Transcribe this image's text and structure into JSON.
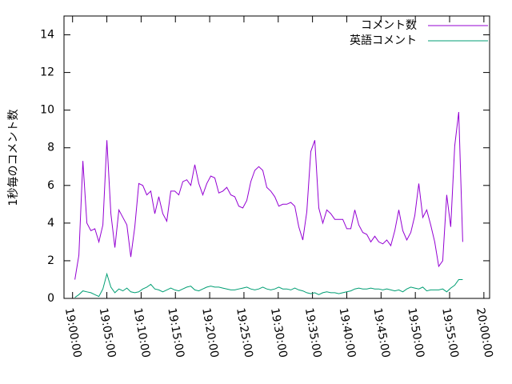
{
  "chart_data": {
    "type": "line",
    "ylabel": "1秒毎のコメント数",
    "legend": "top-right",
    "xlim": [
      "18:58:45",
      "20:00:50"
    ],
    "xticks": [
      "19:00:00",
      "19:05:00",
      "19:10:00",
      "19:15:00",
      "19:20:00",
      "19:25:00",
      "19:30:00",
      "19:35:00",
      "19:40:00",
      "19:45:00",
      "19:50:00",
      "19:55:00",
      "20:00:00"
    ],
    "ylim": [
      0,
      15
    ],
    "yticks": [
      0,
      2,
      4,
      6,
      8,
      10,
      12,
      14
    ],
    "x": [
      "19:00:20",
      "19:00:55",
      "19:01:30",
      "19:02:05",
      "19:02:40",
      "19:03:15",
      "19:03:50",
      "19:04:25",
      "19:05:00",
      "19:05:35",
      "19:06:10",
      "19:06:45",
      "19:07:20",
      "19:07:55",
      "19:08:30",
      "19:09:05",
      "19:09:40",
      "19:10:15",
      "19:10:50",
      "19:11:25",
      "19:12:00",
      "19:12:35",
      "19:13:10",
      "19:13:45",
      "19:14:20",
      "19:14:55",
      "19:15:30",
      "19:16:05",
      "19:16:40",
      "19:17:15",
      "19:17:50",
      "19:18:25",
      "19:19:00",
      "19:19:35",
      "19:20:10",
      "19:20:45",
      "19:21:20",
      "19:21:55",
      "19:22:30",
      "19:23:05",
      "19:23:40",
      "19:24:15",
      "19:24:50",
      "19:25:25",
      "19:26:00",
      "19:26:35",
      "19:27:10",
      "19:27:45",
      "19:28:20",
      "19:28:55",
      "19:29:30",
      "19:30:05",
      "19:30:40",
      "19:31:15",
      "19:31:50",
      "19:32:25",
      "19:33:00",
      "19:33:35",
      "19:34:10",
      "19:34:45",
      "19:35:20",
      "19:35:55",
      "19:36:30",
      "19:37:05",
      "19:37:40",
      "19:38:15",
      "19:38:50",
      "19:39:25",
      "19:40:00",
      "19:40:35",
      "19:41:10",
      "19:41:45",
      "19:42:20",
      "19:42:55",
      "19:43:30",
      "19:44:05",
      "19:44:40",
      "19:45:15",
      "19:45:50",
      "19:46:25",
      "19:47:00",
      "19:47:35",
      "19:48:10",
      "19:48:45",
      "19:49:20",
      "19:49:55",
      "19:50:30",
      "19:51:05",
      "19:51:40",
      "19:52:15",
      "19:52:50",
      "19:53:25",
      "19:54:00",
      "19:54:35",
      "19:55:10",
      "19:55:45",
      "19:56:20",
      "19:56:55"
    ],
    "series": [
      {
        "name": "コメント数",
        "color": "#9400d3",
        "values": [
          1.0,
          2.3,
          7.3,
          4.0,
          3.6,
          3.7,
          3.0,
          3.9,
          8.4,
          4.5,
          2.7,
          4.7,
          4.3,
          3.9,
          2.2,
          3.8,
          6.1,
          6.0,
          5.5,
          5.7,
          4.5,
          5.4,
          4.5,
          4.1,
          5.7,
          5.7,
          5.5,
          6.2,
          6.3,
          6.0,
          7.1,
          6.1,
          5.5,
          6.1,
          6.5,
          6.4,
          5.6,
          5.7,
          5.9,
          5.5,
          5.4,
          4.9,
          4.8,
          5.2,
          6.2,
          6.8,
          7.0,
          6.8,
          5.9,
          5.7,
          5.4,
          4.9,
          5.0,
          5.0,
          5.1,
          4.9,
          3.8,
          3.1,
          4.6,
          7.8,
          8.4,
          4.8,
          4.0,
          4.7,
          4.5,
          4.2,
          4.2,
          4.2,
          3.7,
          3.7,
          4.7,
          3.9,
          3.5,
          3.4,
          3.0,
          3.3,
          3.0,
          2.9,
          3.1,
          2.8,
          3.6,
          4.7,
          3.6,
          3.1,
          3.5,
          4.4,
          6.1,
          4.3,
          4.7,
          3.9,
          3.0,
          1.7,
          2.0,
          5.5,
          3.8,
          8.1,
          9.9,
          3.0
        ]
      },
      {
        "name": "英語コメント",
        "color": "#009e73",
        "values": [
          0.05,
          0.2,
          0.4,
          0.35,
          0.3,
          0.2,
          0.1,
          0.5,
          1.3,
          0.6,
          0.3,
          0.5,
          0.4,
          0.55,
          0.35,
          0.3,
          0.35,
          0.5,
          0.6,
          0.75,
          0.5,
          0.45,
          0.35,
          0.45,
          0.55,
          0.45,
          0.4,
          0.5,
          0.6,
          0.65,
          0.45,
          0.4,
          0.5,
          0.6,
          0.65,
          0.6,
          0.6,
          0.55,
          0.5,
          0.45,
          0.45,
          0.5,
          0.55,
          0.6,
          0.5,
          0.45,
          0.5,
          0.6,
          0.5,
          0.45,
          0.5,
          0.6,
          0.5,
          0.5,
          0.45,
          0.55,
          0.45,
          0.4,
          0.3,
          0.25,
          0.3,
          0.2,
          0.3,
          0.35,
          0.3,
          0.3,
          0.25,
          0.3,
          0.35,
          0.4,
          0.5,
          0.55,
          0.5,
          0.5,
          0.55,
          0.5,
          0.5,
          0.45,
          0.5,
          0.45,
          0.4,
          0.45,
          0.35,
          0.5,
          0.6,
          0.55,
          0.5,
          0.6,
          0.4,
          0.45,
          0.45,
          0.45,
          0.5,
          0.35,
          0.55,
          0.7,
          1.0,
          1.0
        ]
      }
    ]
  }
}
